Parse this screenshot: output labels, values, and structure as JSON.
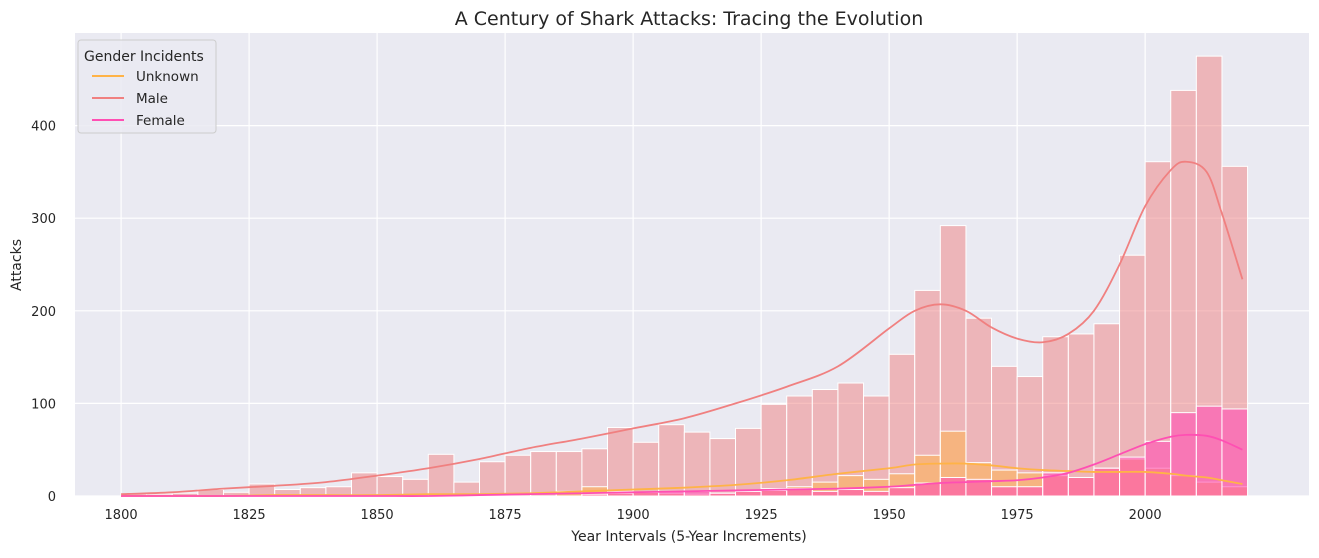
{
  "chart_data": {
    "type": "bar",
    "title": "A Century of Shark Attacks: Tracing the Evolution",
    "xlabel": "Year Intervals (5-Year Increments)",
    "ylabel": "Attacks",
    "xlim": [
      1791,
      1832
    ],
    "ylim": [
      0,
      500
    ],
    "x_ticks": [
      1800,
      1825,
      1850,
      1875,
      1900,
      1925,
      1950,
      1975,
      2000
    ],
    "y_ticks": [
      0,
      100,
      200,
      300,
      400
    ],
    "grid": true,
    "legend": {
      "title": "Gender Incidents",
      "placement": "top-left"
    },
    "bin_width": 5,
    "bin_starts": [
      1800,
      1805,
      1810,
      1815,
      1820,
      1825,
      1830,
      1835,
      1840,
      1845,
      1850,
      1855,
      1860,
      1865,
      1870,
      1875,
      1880,
      1885,
      1890,
      1895,
      1900,
      1905,
      1910,
      1915,
      1920,
      1925,
      1930,
      1935,
      1940,
      1945,
      1950,
      1955,
      1960,
      1965,
      1970,
      1975,
      1980,
      1985,
      1990,
      1995,
      2000,
      2005,
      2010,
      2015
    ],
    "series": [
      {
        "name": "Male",
        "color": "#f08080",
        "values": [
          2,
          2,
          3,
          7,
          4,
          13,
          7,
          9,
          10,
          25,
          21,
          18,
          45,
          15,
          37,
          44,
          48,
          48,
          51,
          74,
          58,
          77,
          69,
          62,
          73,
          99,
          108,
          115,
          122,
          108,
          153,
          222,
          292,
          192,
          140,
          129,
          172,
          175,
          186,
          260,
          361,
          438,
          475,
          356
        ]
      },
      {
        "name": "Unknown",
        "color": "#ffb347",
        "values": [
          0,
          0,
          0,
          0,
          0,
          0,
          0,
          0,
          0,
          0,
          0,
          0,
          0,
          0,
          0,
          0,
          0,
          5,
          10,
          5,
          4,
          3,
          2,
          3,
          5,
          8,
          10,
          15,
          22,
          18,
          24,
          44,
          70,
          36,
          28,
          25,
          22,
          20,
          30,
          40,
          30,
          22,
          15,
          10
        ]
      },
      {
        "name": "Female",
        "color": "#ff4fb3",
        "values": [
          0,
          0,
          0,
          0,
          0,
          0,
          0,
          0,
          0,
          0,
          0,
          0,
          0,
          0,
          0,
          0,
          0,
          0,
          2,
          3,
          4,
          5,
          5,
          3,
          5,
          6,
          8,
          5,
          7,
          5,
          9,
          14,
          20,
          18,
          10,
          10,
          25,
          20,
          30,
          42,
          59,
          90,
          97,
          94
        ]
      }
    ],
    "kde": {
      "x": [
        1800,
        1810,
        1820,
        1830,
        1840,
        1850,
        1860,
        1870,
        1880,
        1890,
        1900,
        1910,
        1920,
        1930,
        1940,
        1950,
        1955,
        1960,
        1965,
        1970,
        1975,
        1980,
        1985,
        1990,
        1995,
        2000,
        2005,
        2008,
        2012,
        2015,
        2019
      ],
      "Male": [
        2,
        4,
        8,
        11,
        15,
        22,
        30,
        40,
        52,
        62,
        73,
        84,
        100,
        118,
        140,
        181,
        200,
        207,
        200,
        182,
        170,
        166,
        175,
        200,
        250,
        313,
        352,
        361,
        350,
        305,
        234
      ],
      "Unknown": [
        0,
        0,
        0,
        1,
        1,
        1,
        2,
        2,
        3,
        5,
        7,
        9,
        12,
        17,
        24,
        30,
        34,
        35,
        35,
        33,
        30,
        28,
        27,
        26,
        26,
        26,
        24,
        22,
        20,
        17,
        13
      ],
      "Female": [
        0,
        0,
        0,
        0,
        0,
        0,
        0,
        1,
        2,
        3,
        4,
        5,
        6,
        7,
        8,
        10,
        12,
        14,
        15,
        16,
        17,
        20,
        25,
        34,
        45,
        56,
        64,
        66,
        65,
        60,
        50
      ]
    }
  }
}
